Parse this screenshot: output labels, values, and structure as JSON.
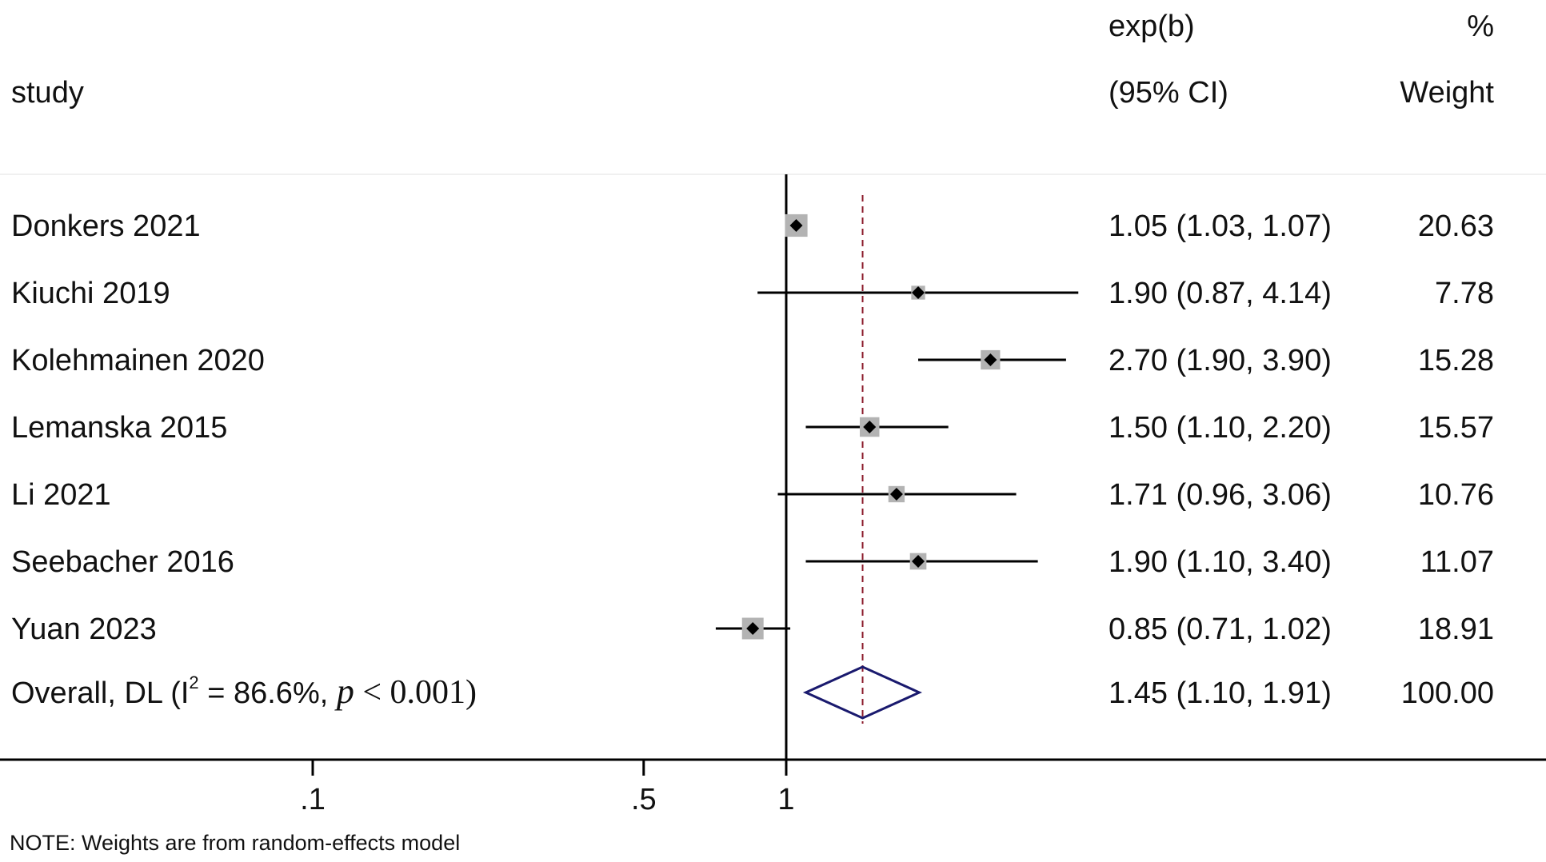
{
  "chart_data": {
    "type": "forest",
    "columns": {
      "study": "study",
      "effect_line1": "exp(b)",
      "effect_line2": "(95% CI)",
      "weight_line1": "%",
      "weight_line2": "Weight"
    },
    "studies": [
      {
        "name": "Donkers 2021",
        "est": 1.05,
        "lo": 1.03,
        "hi": 1.07,
        "ci_text": "1.05 (1.03, 1.07)",
        "weight": 20.63,
        "weight_text": "20.63"
      },
      {
        "name": "Kiuchi 2019",
        "est": 1.9,
        "lo": 0.87,
        "hi": 4.14,
        "ci_text": "1.90 (0.87, 4.14)",
        "weight": 7.78,
        "weight_text": "7.78"
      },
      {
        "name": "Kolehmainen 2020",
        "est": 2.7,
        "lo": 1.9,
        "hi": 3.9,
        "ci_text": "2.70 (1.90, 3.90)",
        "weight": 15.28,
        "weight_text": "15.28"
      },
      {
        "name": "Lemanska 2015",
        "est": 1.5,
        "lo": 1.1,
        "hi": 2.2,
        "ci_text": "1.50 (1.10, 2.20)",
        "weight": 15.57,
        "weight_text": "15.57"
      },
      {
        "name": "Li 2021",
        "est": 1.71,
        "lo": 0.96,
        "hi": 3.06,
        "ci_text": "1.71 (0.96, 3.06)",
        "weight": 10.76,
        "weight_text": "10.76"
      },
      {
        "name": "Seebacher 2016",
        "est": 1.9,
        "lo": 1.1,
        "hi": 3.4,
        "ci_text": "1.90 (1.10, 3.40)",
        "weight": 11.07,
        "weight_text": "11.07"
      },
      {
        "name": "Yuan 2023",
        "est": 0.85,
        "lo": 0.71,
        "hi": 1.02,
        "ci_text": "0.85 (0.71, 1.02)",
        "weight": 18.91,
        "weight_text": "18.91"
      }
    ],
    "overall": {
      "label_prefix": "Overall, DL (I",
      "label_sup": "2",
      "label_mid": " = 86.6%, ",
      "label_p": "p",
      "label_end": " < 0.001)",
      "est": 1.45,
      "lo": 1.1,
      "hi": 1.91,
      "ci_text": "1.45 (1.10, 1.91)",
      "weight_text": "100.00"
    },
    "x_axis": {
      "scale": "log",
      "ticks": [
        0.1,
        0.5,
        1
      ],
      "tick_labels": [
        ".1",
        ".5",
        "1"
      ],
      "null_line": 1
    },
    "note": "NOTE: Weights are from random-effects model",
    "colors": {
      "marker": "#000000",
      "weight_box": "#b3b3b3",
      "overall_diamond": "#1a1a6e",
      "overall_line": "#8b1a2b",
      "axis": "#000000"
    }
  }
}
